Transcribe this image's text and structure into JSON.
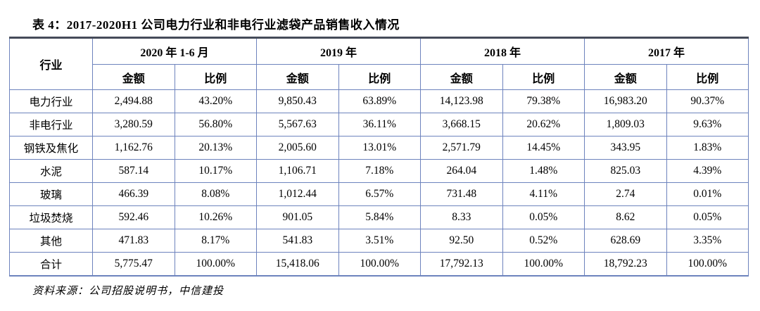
{
  "title": "表 4：2017-2020H1 公司电力行业和非电行业滤袋产品销售收入情况",
  "table": {
    "industry_header": "行业",
    "year_groups": [
      {
        "label": "2020 年 1-6 月",
        "sub": [
          "金额",
          "比例"
        ]
      },
      {
        "label": "2019 年",
        "sub": [
          "金额",
          "比例"
        ]
      },
      {
        "label": "2018 年",
        "sub": [
          "金额",
          "比例"
        ]
      },
      {
        "label": "2017 年",
        "sub": [
          "金额",
          "比例"
        ]
      }
    ],
    "rows": [
      {
        "industry": "电力行业",
        "values": [
          "2,494.88",
          "43.20%",
          "9,850.43",
          "63.89%",
          "14,123.98",
          "79.38%",
          "16,983.20",
          "90.37%"
        ]
      },
      {
        "industry": "非电行业",
        "values": [
          "3,280.59",
          "56.80%",
          "5,567.63",
          "36.11%",
          "3,668.15",
          "20.62%",
          "1,809.03",
          "9.63%"
        ]
      },
      {
        "industry": "钢铁及焦化",
        "values": [
          "1,162.76",
          "20.13%",
          "2,005.60",
          "13.01%",
          "2,571.79",
          "14.45%",
          "343.95",
          "1.83%"
        ]
      },
      {
        "industry": "水泥",
        "values": [
          "587.14",
          "10.17%",
          "1,106.71",
          "7.18%",
          "264.04",
          "1.48%",
          "825.03",
          "4.39%"
        ]
      },
      {
        "industry": "玻璃",
        "values": [
          "466.39",
          "8.08%",
          "1,012.44",
          "6.57%",
          "731.48",
          "4.11%",
          "2.74",
          "0.01%"
        ]
      },
      {
        "industry": "垃圾焚烧",
        "values": [
          "592.46",
          "10.26%",
          "901.05",
          "5.84%",
          "8.33",
          "0.05%",
          "8.62",
          "0.05%"
        ]
      },
      {
        "industry": "其他",
        "values": [
          "471.83",
          "8.17%",
          "541.83",
          "3.51%",
          "92.50",
          "0.52%",
          "628.69",
          "3.35%"
        ]
      },
      {
        "industry": "合计",
        "values": [
          "5,775.47",
          "100.00%",
          "15,418.06",
          "100.00%",
          "17,792.13",
          "100.00%",
          "18,792.23",
          "100.00%"
        ]
      }
    ]
  },
  "footer": {
    "source": "资料来源：公司招股说明书，中信建投"
  },
  "colors": {
    "cell_border_blue": "#6d83bd",
    "top_rule_dark": "#454b59",
    "text": "#000000",
    "background": "#ffffff"
  }
}
